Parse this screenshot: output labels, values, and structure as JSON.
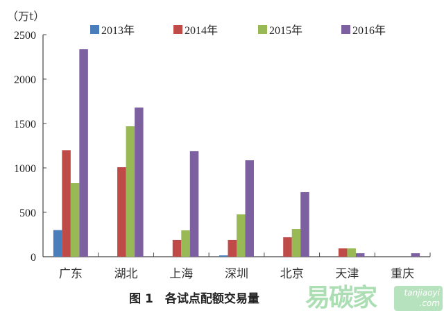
{
  "chart_data": {
    "type": "bar",
    "title": "图 1　各试点配额交易量",
    "ylabel": "（万t）",
    "xlabel": "",
    "ylim": [
      0,
      2500
    ],
    "yticks": [
      0,
      500,
      1000,
      1500,
      2000,
      2500
    ],
    "grid": false,
    "legend_position": "top",
    "categories": [
      "广东",
      "湖北",
      "上海",
      "深圳",
      "北京",
      "天津",
      "重庆"
    ],
    "series": [
      {
        "name": "2013年",
        "color": "#4a7ebb",
        "values": [
          300,
          0,
          0,
          15,
          0,
          0,
          0
        ]
      },
      {
        "name": "2014年",
        "color": "#be4b48",
        "values": [
          1200,
          1008,
          188,
          188,
          219,
          94,
          0
        ]
      },
      {
        "name": "2015年",
        "color": "#98b954",
        "values": [
          828,
          1469,
          297,
          477,
          312,
          94,
          0
        ]
      },
      {
        "name": "2016年",
        "color": "#7d60a0",
        "values": [
          2336,
          1680,
          1188,
          1086,
          727,
          39,
          39
        ]
      }
    ]
  },
  "watermark": {
    "brand": "易碳家",
    "site": "tanjiaoyi",
    "domain": ".com"
  }
}
